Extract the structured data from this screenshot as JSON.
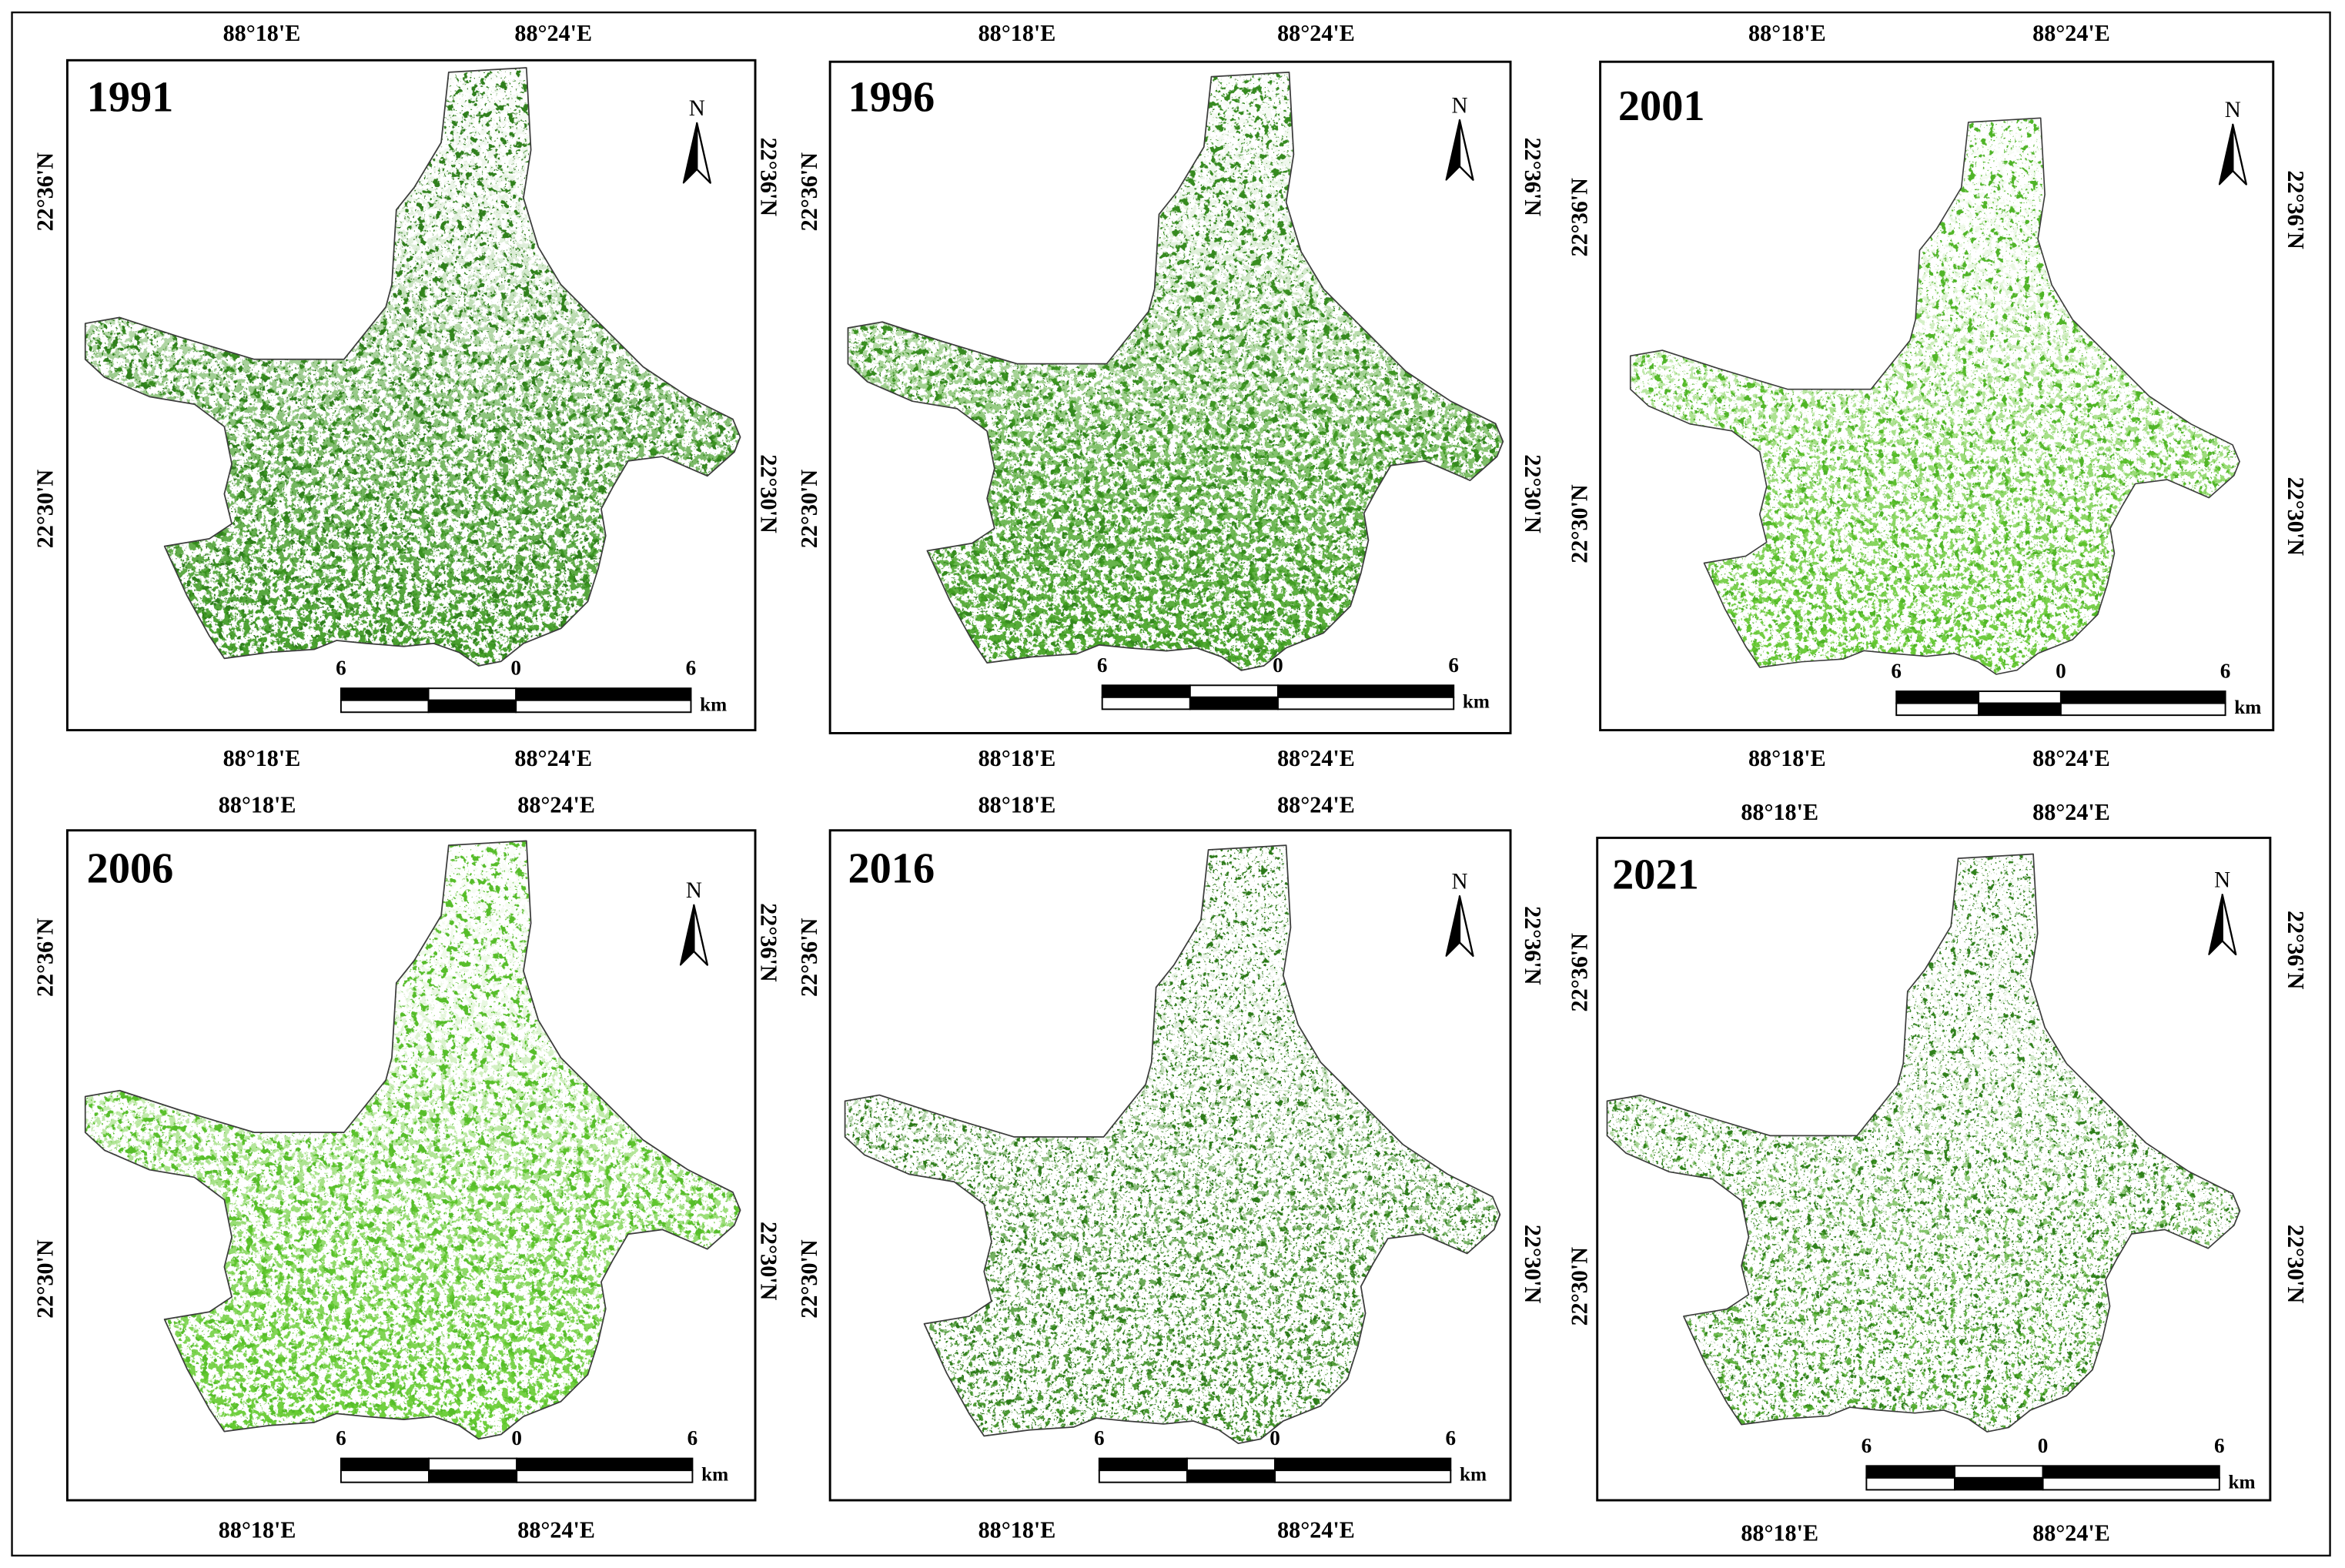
{
  "colors": {
    "background": "#ffffff",
    "frame": "#000000",
    "boundary": "#3c3c3c"
  },
  "panels": [
    {
      "year": "1991",
      "longitude_labels_top": [
        "88°18'E",
        "88°24'E"
      ],
      "longitude_labels_bottom": [
        "88°18'E",
        "88°24'E"
      ],
      "latitude_labels_left": [
        "22°36'N",
        "22°30'N"
      ],
      "latitude_labels_right": [
        "22°36'N",
        "22°30'N"
      ],
      "north_label": "N",
      "scale_labels": [
        "6",
        "0",
        "6"
      ],
      "scale_unit": "km",
      "vegetation_colors": [
        "#2f7f1c",
        "#3e9a22"
      ]
    },
    {
      "year": "1996",
      "longitude_labels_top": [
        "88°18'E",
        "88°24'E"
      ],
      "longitude_labels_bottom": [
        "88°18'E",
        "88°24'E"
      ],
      "latitude_labels_left": [
        "22°36'N",
        "22°30'N"
      ],
      "latitude_labels_right": [
        "22°36'N",
        "22°30'N"
      ],
      "north_label": "N",
      "scale_labels": [
        "6",
        "0",
        "6"
      ],
      "scale_unit": "km",
      "vegetation_colors": [
        "#35891f",
        "#45a324"
      ]
    },
    {
      "year": "2001",
      "longitude_labels_top": [
        "88°18'E",
        "88°24'E"
      ],
      "longitude_labels_bottom": [
        "88°18'E",
        "88°24'E"
      ],
      "latitude_labels_left": [
        "22°36'N",
        "22°30'N"
      ],
      "latitude_labels_right": [
        "22°36'N",
        "22°30'N"
      ],
      "north_label": "N",
      "scale_labels": [
        "6",
        "0",
        "6"
      ],
      "scale_unit": "km",
      "vegetation_colors": [
        "#4fb427",
        "#63c82f"
      ]
    },
    {
      "year": "2006",
      "longitude_labels_top": [
        "88°18'E",
        "88°24'E"
      ],
      "longitude_labels_bottom": [
        "88°18'E",
        "88°24'E"
      ],
      "latitude_labels_left": [
        "22°36'N",
        "22°30'N"
      ],
      "latitude_labels_right": [
        "22°36'N",
        "22°30'N"
      ],
      "north_label": "N",
      "scale_labels": [
        "6",
        "0",
        "6"
      ],
      "scale_unit": "km",
      "vegetation_colors": [
        "#56bd2a",
        "#66cc31"
      ]
    },
    {
      "year": "2016",
      "longitude_labels_top": [
        "88°18'E",
        "88°24'E"
      ],
      "longitude_labels_bottom": [
        "88°18'E",
        "88°24'E"
      ],
      "latitude_labels_left": [
        "22°36'N",
        "22°30'N"
      ],
      "latitude_labels_right": [
        "22°36'N",
        "22°30'N"
      ],
      "north_label": "N",
      "scale_labels": [
        "6",
        "0",
        "6"
      ],
      "scale_unit": "km",
      "vegetation_colors": [
        "#2c7a19",
        "#3a8f20"
      ]
    },
    {
      "year": "2021",
      "longitude_labels_top": [
        "88°18'E",
        "88°24'E"
      ],
      "longitude_labels_bottom": [
        "88°18'E",
        "88°24'E"
      ],
      "latitude_labels_left": [
        "22°36'N",
        "22°30'N"
      ],
      "latitude_labels_right": [
        "22°36'N",
        "22°30'N"
      ],
      "north_label": "N",
      "scale_labels": [
        "6",
        "0",
        "6"
      ],
      "scale_unit": "km",
      "vegetation_colors": [
        "#2f801b",
        "#4aa826"
      ]
    }
  ]
}
